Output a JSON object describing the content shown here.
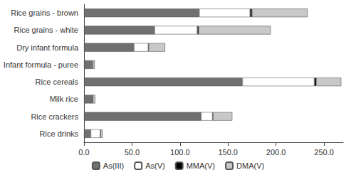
{
  "chart_data": {
    "type": "bar",
    "orientation": "horizontal",
    "stacked": true,
    "grid": false,
    "legend": "bottom",
    "categories": [
      "Rice grains - brown",
      "Rice grains - white",
      "Dry infant formula",
      "Infant formula - puree",
      "Rice cereals",
      "Milk rice",
      "Rice crackers",
      "Rice drinks"
    ],
    "series": [
      {
        "name": "As(III)",
        "color": "#707070",
        "values": [
          120,
          73.5,
          52,
          8,
          165,
          8.5,
          122,
          7
        ]
      },
      {
        "name": "As(V)",
        "color": "#ffffff",
        "values": [
          53,
          44.5,
          15,
          1,
          75,
          0.5,
          12,
          10
        ]
      },
      {
        "name": "MMA(V)",
        "color": "#000000",
        "values": [
          2,
          1.5,
          0.5,
          0.2,
          2,
          0.2,
          0.5,
          0.3
        ]
      },
      {
        "name": "DMA(V)",
        "color": "#c8c8c8",
        "values": [
          58,
          75,
          17,
          2,
          26,
          2.5,
          20,
          2
        ]
      }
    ],
    "xlim": [
      0,
      270
    ],
    "xticks": [
      {
        "value": 0,
        "label": "0.0"
      },
      {
        "value": 50,
        "label": "50.0"
      },
      {
        "value": 100,
        "label": "100.0"
      },
      {
        "value": 150,
        "label": "150.0"
      },
      {
        "value": 200,
        "label": "200.0"
      },
      {
        "value": 250,
        "label": "250.0"
      }
    ]
  }
}
